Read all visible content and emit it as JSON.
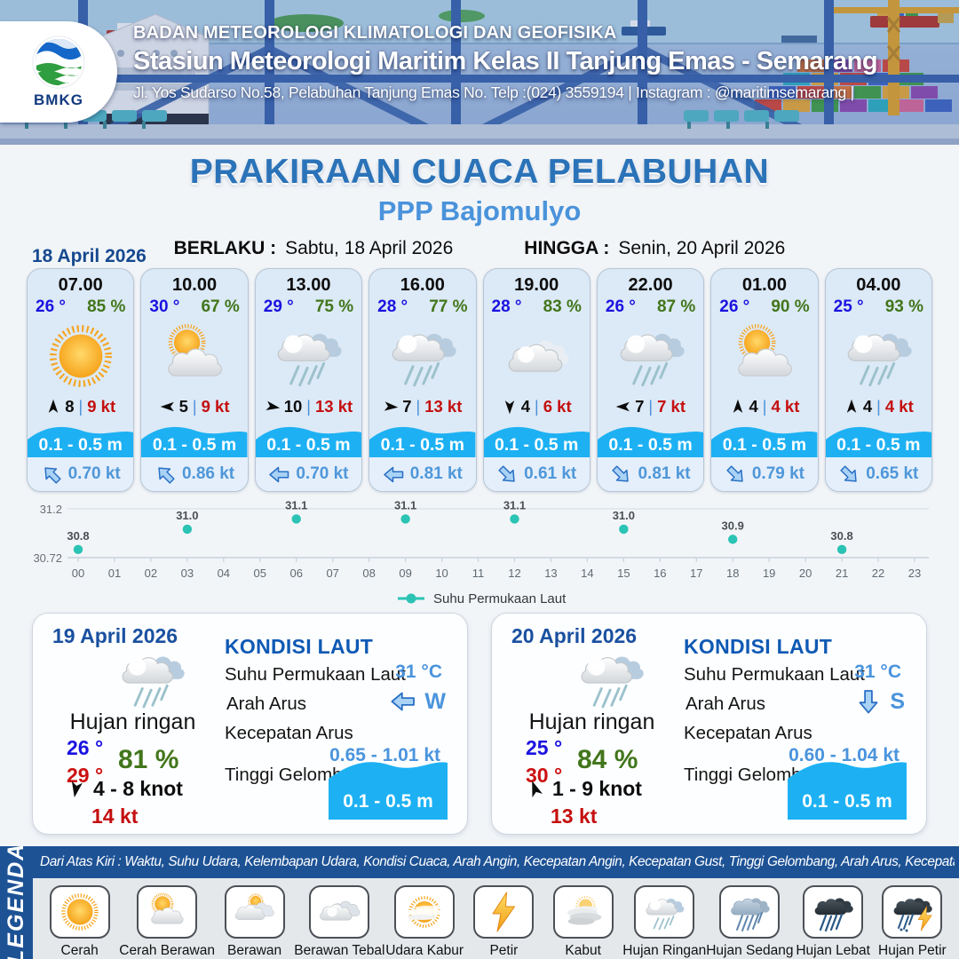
{
  "header": {
    "agency": "BADAN METEOROLOGI KLIMATOLOGI DAN GEOFISIKA",
    "station": "Stasiun Meteorologi Maritim Kelas II Tanjung Emas - Semarang",
    "address": "Jl. Yos Sudarso No.58, Pelabuhan Tanjung Emas No. Telp :(024) 3559194 | Instagram : @maritimsemarang |",
    "logo_text": "BMKG"
  },
  "title": {
    "main": "PRAKIRAAN CUACA PELABUHAN",
    "sub": "PPP Bajomulyo",
    "berlaku_label": "BERLAKU :",
    "berlaku_value": "Sabtu, 18 April 2026",
    "hingga_label": "HINGGA :",
    "hingga_value": "Senin, 20 April 2026"
  },
  "forecast": {
    "date_label": "18 April 2026",
    "cards": [
      {
        "time": "07.00",
        "temp": "26 °",
        "humidity": "85 %",
        "icon": "sun",
        "wind_dir_deg": 0,
        "wind_speed": "8",
        "gust": "9 kt",
        "wave": "0.1 - 0.5 m",
        "current_dir_deg": 225,
        "current_speed": "0.70 kt"
      },
      {
        "time": "10.00",
        "temp": "30 °",
        "humidity": "67 %",
        "icon": "sun-cloud",
        "wind_dir_deg": 270,
        "wind_speed": "5",
        "gust": "9 kt",
        "wave": "0.1 - 0.5 m",
        "current_dir_deg": 225,
        "current_speed": "0.86 kt"
      },
      {
        "time": "13.00",
        "temp": "29 °",
        "humidity": "75 %",
        "icon": "rain-light",
        "wind_dir_deg": 100,
        "wind_speed": "10",
        "gust": "13 kt",
        "wave": "0.1 - 0.5 m",
        "current_dir_deg": 180,
        "current_speed": "0.70 kt"
      },
      {
        "time": "16.00",
        "temp": "28 °",
        "humidity": "77 %",
        "icon": "rain-light",
        "wind_dir_deg": 95,
        "wind_speed": "7",
        "gust": "13 kt",
        "wave": "0.1 - 0.5 m",
        "current_dir_deg": 180,
        "current_speed": "0.81 kt"
      },
      {
        "time": "19.00",
        "temp": "28 °",
        "humidity": "83 %",
        "icon": "cloud",
        "wind_dir_deg": 180,
        "wind_speed": "4",
        "gust": "6 kt",
        "wave": "0.1 - 0.5 m",
        "current_dir_deg": 45,
        "current_speed": "0.61 kt"
      },
      {
        "time": "22.00",
        "temp": "26 °",
        "humidity": "87 %",
        "icon": "rain-light",
        "wind_dir_deg": 270,
        "wind_speed": "7",
        "gust": "7 kt",
        "wave": "0.1 - 0.5 m",
        "current_dir_deg": 45,
        "current_speed": "0.81 kt"
      },
      {
        "time": "01.00",
        "temp": "26 °",
        "humidity": "90 %",
        "icon": "sun-cloud",
        "wind_dir_deg": 0,
        "wind_speed": "4",
        "gust": "4 kt",
        "wave": "0.1 - 0.5 m",
        "current_dir_deg": 45,
        "current_speed": "0.79 kt"
      },
      {
        "time": "04.00",
        "temp": "25 °",
        "humidity": "93 %",
        "icon": "rain-light",
        "wind_dir_deg": 0,
        "wind_speed": "4",
        "gust": "4 kt",
        "wave": "0.1 - 0.5 m",
        "current_dir_deg": 45,
        "current_speed": "0.65 kt"
      }
    ]
  },
  "chart_data": {
    "type": "scatter",
    "title": "",
    "series_name": "Suhu Permukaan Laut",
    "x": [
      0,
      3,
      6,
      9,
      12,
      15,
      18,
      21
    ],
    "values": [
      30.8,
      31.0,
      31.1,
      31.1,
      31.1,
      31.0,
      30.9,
      30.8
    ],
    "labels": [
      "30.8",
      "31.0",
      "31.1",
      "31.1",
      "31.1",
      "31.0",
      "30.9",
      "30.8"
    ],
    "x_ticks": [
      "00",
      "01",
      "02",
      "03",
      "04",
      "05",
      "06",
      "07",
      "08",
      "09",
      "10",
      "11",
      "12",
      "13",
      "14",
      "15",
      "16",
      "17",
      "18",
      "19",
      "20",
      "21",
      "22",
      "23"
    ],
    "y_ticks": [
      "31.2",
      "30.72"
    ],
    "ylim": [
      30.72,
      31.2
    ],
    "grid": true,
    "legend_position": "bottom",
    "point_color": "#2bc3b4"
  },
  "day_cards": [
    {
      "date": "19 April 2026",
      "icon": "rain-light",
      "condition": "Hujan ringan",
      "temp_min": "26 °",
      "temp_max": "29 °",
      "humidity": "81 %",
      "wind_dir_deg": 190,
      "wind_range": "4  - 8 knot",
      "gust": "14 kt",
      "sea": {
        "title": "KONDISI LAUT",
        "sst_label": "Suhu Permukaan Laut",
        "sst_value": "31 °C",
        "current_dir_label": "Arah Arus",
        "current_dir_deg": 180,
        "current_dir_text": "W",
        "current_speed_label": "Kecepatan Arus",
        "current_speed_value": "0.65 - 1.01 kt",
        "wave_label": "Tinggi Gelombang",
        "wave_value": "0.1 - 0.5 m"
      }
    },
    {
      "date": "20 April 2026",
      "icon": "rain-light",
      "condition": "Hujan ringan",
      "temp_min": "25 °",
      "temp_max": "30 °",
      "humidity": "84 %",
      "wind_dir_deg": 340,
      "wind_range": "1  - 9 knot",
      "gust": "13 kt",
      "sea": {
        "title": "KONDISI LAUT",
        "sst_label": "Suhu Permukaan Laut",
        "sst_value": "31 °C",
        "current_dir_label": "Arah Arus",
        "current_dir_deg": 90,
        "current_dir_text": "S",
        "current_speed_label": "Kecepatan Arus",
        "current_speed_value": "0.60 - 1.04 kt",
        "wave_label": "Tinggi Gelombang",
        "wave_value": "0.1 - 0.5 m"
      }
    }
  ],
  "legend": {
    "title": "LEGENDA",
    "description": "Dari Atas Kiri : Waktu, Suhu Udara, Kelembapan Udara, Kondisi Cuaca, Arah Angin, Kecepatan Angin, Kecepatan Gust, Tinggi Gelombang, Arah Arus, Kecepatan Arus",
    "items": [
      {
        "label": "Cerah",
        "icon": "sun"
      },
      {
        "label": "Cerah Berawan",
        "icon": "sun-cloud"
      },
      {
        "label": "Berawan",
        "icon": "berawan"
      },
      {
        "label": "Berawan Tebal",
        "icon": "cloud-thick"
      },
      {
        "label": "Udara Kabur",
        "icon": "haze"
      },
      {
        "label": "Petir",
        "icon": "bolt"
      },
      {
        "label": "Kabut",
        "icon": "fog"
      },
      {
        "label": "Hujan Ringan",
        "icon": "rain-light"
      },
      {
        "label": "Hujan Sedang",
        "icon": "rain-mid"
      },
      {
        "label": "Hujan Lebat",
        "icon": "rain-heavy"
      },
      {
        "label": "Hujan Petir",
        "icon": "rain-thunder"
      }
    ]
  },
  "colors": {
    "title_blue": "#2b73b8",
    "sub_blue": "#4a93db",
    "card_bg": "#dce9f6",
    "wave_blue": "#1db1f3",
    "temp_blue": "#1a12e0",
    "humidity_green": "#42761b",
    "gust_red": "#c40f0f",
    "current_blue": "#4f97d9",
    "kondisi_blue": "#0f59b4",
    "chart_teal": "#2bc3b4",
    "legend_bg": "#1d5295"
  }
}
